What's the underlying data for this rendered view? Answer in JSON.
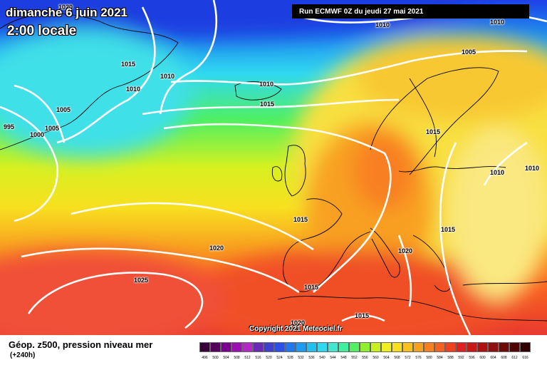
{
  "header": {
    "date_line": "dimanche 6 juin 2021",
    "time_line": "2:00 locale",
    "run_info": "Run ECMWF 0Z du jeudi 27 mai 2021"
  },
  "copyright": "Copyright 2021 Meteociel.fr",
  "legend": {
    "title": "Géop. z500, pression niveau mer",
    "subtitle": "(+240h)",
    "ticks": [
      "496",
      "500",
      "504",
      "508",
      "512",
      "516",
      "520",
      "524",
      "528",
      "532",
      "536",
      "540",
      "544",
      "548",
      "552",
      "556",
      "560",
      "564",
      "568",
      "572",
      "576",
      "580",
      "584",
      "588",
      "592",
      "596",
      "600",
      "604",
      "608",
      "612",
      "616"
    ],
    "colors": [
      "#3a003a",
      "#55005a",
      "#7a0090",
      "#9a10b0",
      "#b428c8",
      "#6a2ab8",
      "#4040d0",
      "#2a50e8",
      "#1e78f0",
      "#1e9af0",
      "#22c0f0",
      "#30d8f0",
      "#40e8d0",
      "#40f0a0",
      "#50f060",
      "#90f030",
      "#c8f020",
      "#f0f020",
      "#f8e020",
      "#f8c020",
      "#f8a020",
      "#f88020",
      "#f86020",
      "#f04020",
      "#e02020",
      "#c81818",
      "#b01010",
      "#901010",
      "#700808",
      "#500404",
      "#300000"
    ]
  },
  "isobar_labels": [
    "1010",
    "1010",
    "1005",
    "1015",
    "1010",
    "1010",
    "1010",
    "1015",
    "1005",
    "1005",
    "995",
    "1000",
    "1015",
    "1010",
    "1010",
    "1015",
    "1020",
    "1025",
    "1015",
    "1020",
    "1015",
    "1020",
    "1015",
    "1020"
  ],
  "colors": {
    "background": "#ffffff",
    "isobar_line": "#ffffff",
    "run_box": "#000000"
  }
}
